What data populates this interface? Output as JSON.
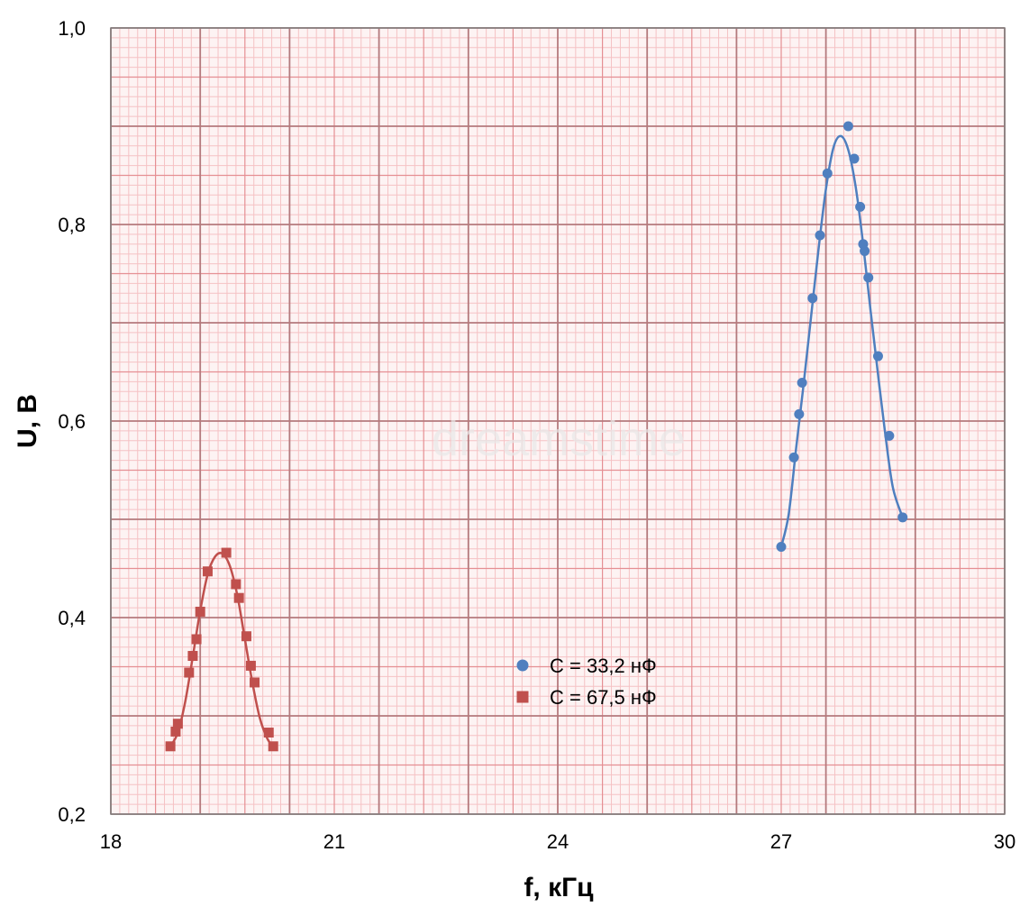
{
  "chart_data": {
    "type": "scatter",
    "title": "",
    "xlabel": "f, кГц",
    "ylabel": "U, В",
    "xlim": [
      18,
      30
    ],
    "ylim": [
      0.2,
      1.0
    ],
    "x_ticks": [
      "18",
      "21",
      "24",
      "27",
      "30"
    ],
    "y_ticks": [
      "0,2",
      "0,4",
      "0,6",
      "0,8",
      "1,0"
    ],
    "grid": "graph-paper",
    "legend_position": "bottom-center",
    "watermark": "dreamstime",
    "colors": {
      "series_1": "#4f7fbf",
      "series_2": "#c0504d",
      "grid_fine": "#f5c2c4",
      "grid_mid": "#e58f93",
      "grid_major": "#b47a7d",
      "border": "#7f7f7f"
    },
    "series": [
      {
        "name": "C = 33,2 нФ",
        "marker": "circle",
        "points": [
          [
            27.0,
            0.472
          ],
          [
            27.17,
            0.563
          ],
          [
            27.24,
            0.607
          ],
          [
            27.28,
            0.639
          ],
          [
            27.42,
            0.725
          ],
          [
            27.52,
            0.789
          ],
          [
            27.62,
            0.852
          ],
          [
            27.9,
            0.9
          ],
          [
            27.98,
            0.867
          ],
          [
            28.06,
            0.818
          ],
          [
            28.1,
            0.78
          ],
          [
            28.12,
            0.773
          ],
          [
            28.17,
            0.746
          ],
          [
            28.3,
            0.666
          ],
          [
            28.45,
            0.585
          ],
          [
            28.63,
            0.502
          ]
        ]
      },
      {
        "name": "C = 67,5 нФ",
        "marker": "square",
        "points": [
          [
            18.8,
            0.269
          ],
          [
            18.87,
            0.284
          ],
          [
            18.9,
            0.292
          ],
          [
            19.05,
            0.344
          ],
          [
            19.1,
            0.361
          ],
          [
            19.15,
            0.378
          ],
          [
            19.2,
            0.406
          ],
          [
            19.3,
            0.447
          ],
          [
            19.55,
            0.466
          ],
          [
            19.68,
            0.434
          ],
          [
            19.72,
            0.42
          ],
          [
            19.82,
            0.381
          ],
          [
            19.88,
            0.351
          ],
          [
            19.93,
            0.334
          ],
          [
            20.12,
            0.283
          ],
          [
            20.18,
            0.269
          ]
        ]
      }
    ],
    "fit_curves": [
      {
        "series": "C = 33,2 нФ",
        "points": [
          [
            27.0,
            0.472
          ],
          [
            27.1,
            0.505
          ],
          [
            27.2,
            0.572
          ],
          [
            27.3,
            0.637
          ],
          [
            27.4,
            0.706
          ],
          [
            27.5,
            0.774
          ],
          [
            27.6,
            0.836
          ],
          [
            27.7,
            0.878
          ],
          [
            27.8,
            0.89
          ],
          [
            27.9,
            0.876
          ],
          [
            28.0,
            0.838
          ],
          [
            28.1,
            0.78
          ],
          [
            28.2,
            0.712
          ],
          [
            28.3,
            0.647
          ],
          [
            28.4,
            0.585
          ],
          [
            28.5,
            0.532
          ],
          [
            28.63,
            0.502
          ]
        ]
      },
      {
        "series": "C = 67,5 нФ",
        "points": [
          [
            18.8,
            0.269
          ],
          [
            18.9,
            0.283
          ],
          [
            19.0,
            0.315
          ],
          [
            19.1,
            0.36
          ],
          [
            19.2,
            0.407
          ],
          [
            19.3,
            0.444
          ],
          [
            19.4,
            0.462
          ],
          [
            19.5,
            0.465
          ],
          [
            19.6,
            0.452
          ],
          [
            19.7,
            0.422
          ],
          [
            19.8,
            0.378
          ],
          [
            19.9,
            0.334
          ],
          [
            20.0,
            0.298
          ],
          [
            20.1,
            0.277
          ],
          [
            20.18,
            0.269
          ]
        ]
      }
    ]
  }
}
